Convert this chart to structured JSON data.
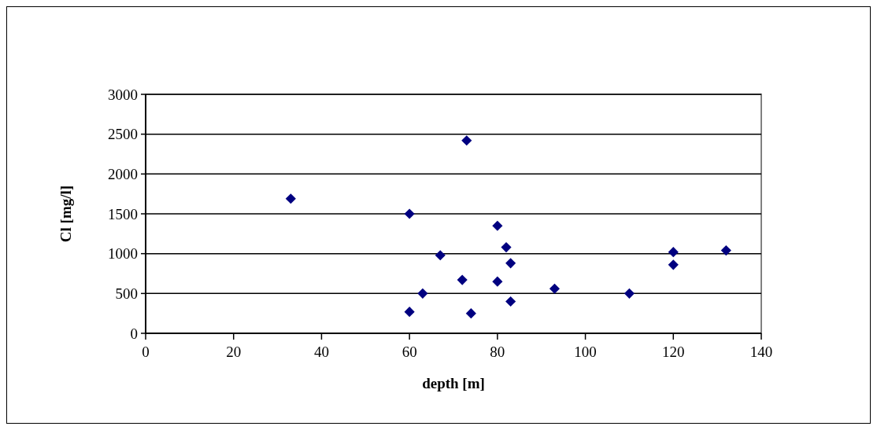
{
  "chart_data": {
    "type": "scatter",
    "xlabel": "depth [m]",
    "ylabel": "Cl [mg/l]",
    "x": [
      33,
      60,
      67,
      63,
      60,
      73,
      80,
      82,
      83,
      72,
      80,
      83,
      74,
      93,
      110,
      120,
      120,
      132
    ],
    "values": [
      1690,
      1500,
      980,
      500,
      270,
      2420,
      1350,
      1080,
      880,
      670,
      650,
      400,
      250,
      560,
      500,
      1020,
      860,
      1040
    ],
    "color": "#000080",
    "marker": "diamond",
    "grid": "y",
    "xlim": [
      0,
      140
    ],
    "xticks": [
      0,
      20,
      40,
      60,
      80,
      100,
      120,
      140
    ],
    "ylim": [
      0,
      3000
    ],
    "yticks": [
      0,
      500,
      1000,
      1500,
      2000,
      2500,
      3000
    ]
  }
}
